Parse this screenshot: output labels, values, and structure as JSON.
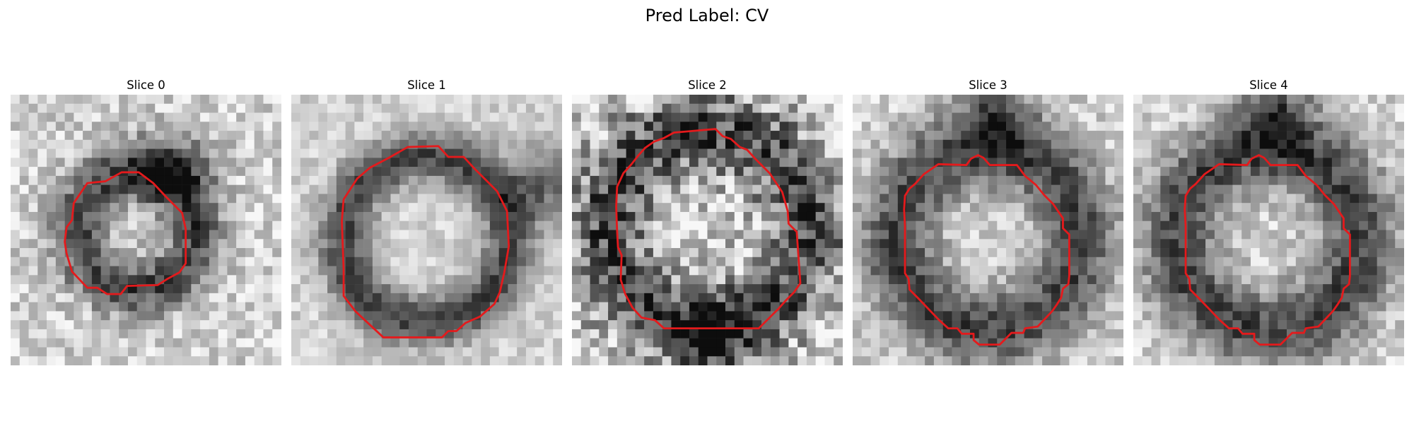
{
  "figure": {
    "title": "Pred Label: CV"
  },
  "panels": [
    {
      "title": "Slice 0",
      "contour_color": "#e41a1c"
    },
    {
      "title": "Slice 1",
      "contour_color": "#e41a1c"
    },
    {
      "title": "Slice 2",
      "contour_color": "#e41a1c"
    },
    {
      "title": "Slice 3",
      "contour_color": "#e41a1c"
    },
    {
      "title": "Slice 4",
      "contour_color": "#e41a1c"
    }
  ],
  "colors": {
    "background": "#ffffff",
    "contour": "#e41a1c"
  }
}
